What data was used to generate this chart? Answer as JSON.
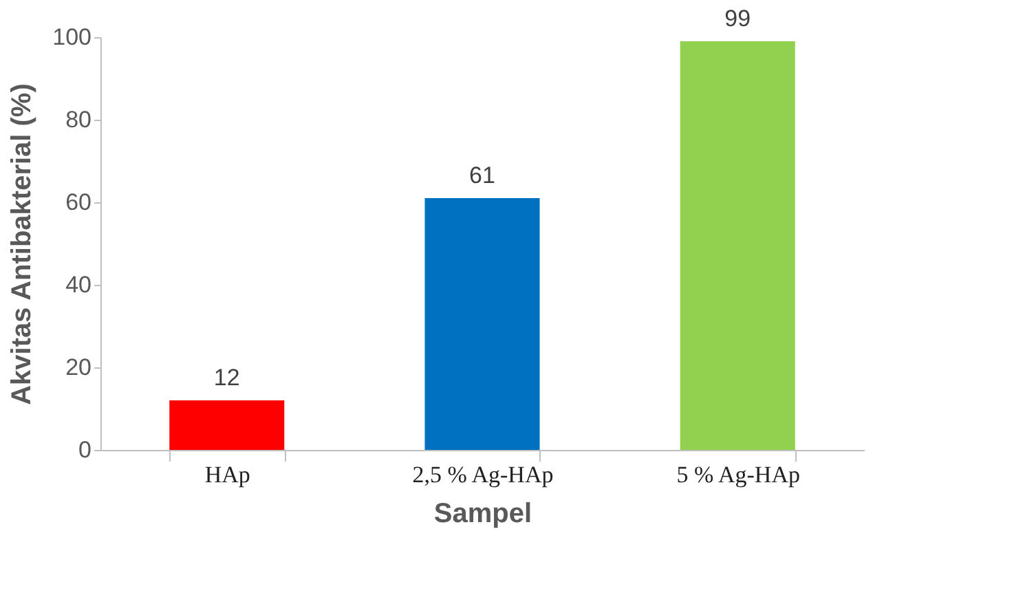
{
  "chart_data": {
    "type": "bar",
    "xlabel": "Sampel",
    "ylabel": "Akvitas Antibakterial  (%)",
    "categories": [
      "HAp",
      "2,5 % Ag-HAp",
      "5 % Ag-HAp"
    ],
    "values": [
      12,
      61,
      99
    ],
    "colors": [
      "#ff0000",
      "#0070c0",
      "#92d050"
    ],
    "ylim": [
      0,
      100
    ],
    "yticks": [
      0,
      20,
      40,
      60,
      80,
      100
    ],
    "grid": false,
    "data_labels": true
  }
}
